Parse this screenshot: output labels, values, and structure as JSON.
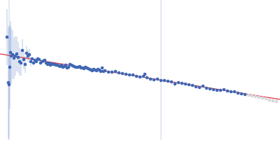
{
  "chart_data": {
    "type": "scatter",
    "xlim": [
      0,
      400
    ],
    "ylim": [
      200,
      0
    ],
    "vlines": {
      "color": "#c9d3e6",
      "x": [
        13,
        230
      ]
    },
    "series": [
      {
        "color": "#3f67b5",
        "error_color": "#b7c7e6",
        "x": [
          10,
          12,
          13,
          14,
          15,
          16,
          18,
          20,
          22,
          24,
          26,
          28,
          30,
          32,
          34,
          36,
          38,
          40,
          42,
          44,
          46,
          48,
          50,
          52,
          54,
          56,
          58,
          60,
          62,
          64,
          66,
          68,
          70,
          72,
          74,
          76,
          78,
          80,
          82,
          84,
          86,
          88,
          90,
          92,
          94,
          96,
          98,
          100,
          102,
          104,
          106,
          108,
          110,
          112,
          114,
          116,
          118,
          120,
          122,
          124,
          126,
          128,
          130,
          132,
          134,
          136,
          138,
          140,
          142,
          144,
          146,
          148,
          150,
          155,
          160,
          165,
          170,
          175,
          180,
          185,
          190,
          195,
          200,
          205,
          207,
          210,
          215,
          220,
          225,
          230,
          235,
          240,
          245,
          250,
          255,
          260,
          265,
          270,
          275,
          280,
          285,
          290,
          295,
          300,
          305,
          310,
          315,
          320,
          325,
          330,
          335,
          340,
          345,
          350
        ],
        "values": [
          53,
          118,
          121,
          96,
          75,
          80,
          78,
          83,
          80,
          77,
          82,
          88,
          90,
          72,
          85,
          92,
          76,
          80,
          78,
          88,
          84,
          90,
          86,
          88,
          84,
          85,
          90,
          88,
          87,
          86,
          90,
          92,
          90,
          93,
          91,
          92,
          92,
          93,
          93,
          94,
          95,
          93,
          96,
          95,
          93,
          97,
          96,
          92,
          93,
          94,
          95,
          96,
          96,
          96,
          95,
          97,
          97,
          98,
          96,
          97,
          98,
          99,
          100,
          101,
          99,
          100,
          101,
          99,
          100,
          102,
          97,
          102,
          101,
          103,
          103,
          102,
          104,
          105,
          106,
          107,
          107,
          109,
          110,
          109,
          106,
          111,
          113,
          114,
          113,
          115,
          115,
          116,
          117,
          120,
          118,
          119,
          120,
          121,
          122,
          124,
          125,
          123,
          126,
          127,
          128,
          129,
          129,
          128,
          130,
          131,
          131,
          133,
          134,
          135
        ],
        "errors": [
          40,
          80,
          80,
          60,
          45,
          40,
          35,
          30,
          28,
          25,
          22,
          20,
          18,
          16,
          14,
          12,
          10,
          9,
          8,
          7,
          2,
          2,
          2,
          2,
          2,
          2,
          2,
          2,
          2,
          2,
          2,
          2,
          2,
          2,
          2,
          2,
          2,
          2,
          2,
          2,
          2,
          2,
          2,
          2,
          2,
          2,
          2,
          2,
          2,
          2,
          2,
          2,
          2,
          2,
          2,
          2,
          2,
          2,
          2,
          2,
          2,
          2,
          2,
          2,
          2,
          2,
          2,
          2,
          2,
          2,
          2,
          2,
          2,
          2,
          2,
          2,
          2,
          2,
          2,
          2,
          2,
          2,
          2,
          2,
          2,
          2,
          2,
          2,
          2,
          2,
          2,
          2,
          2,
          2,
          2,
          2,
          2,
          2,
          2,
          2,
          2,
          2,
          2,
          2,
          2,
          2,
          2,
          2,
          2,
          2,
          2,
          2,
          2,
          2
        ]
      },
      {
        "color": "#d6d6dc",
        "error_color": "#e4e4ea",
        "x": [
          355,
          360,
          365,
          370,
          375,
          380,
          385,
          390,
          395
        ],
        "values": [
          136,
          137,
          138,
          139,
          140,
          141,
          143,
          144,
          145
        ],
        "errors": [
          2,
          2,
          2,
          2,
          2,
          2,
          2,
          2,
          2
        ]
      }
    ],
    "fit_line": {
      "color": "#e0303a",
      "x": [
        0,
        400
      ],
      "values": [
        77,
        142
      ]
    }
  }
}
